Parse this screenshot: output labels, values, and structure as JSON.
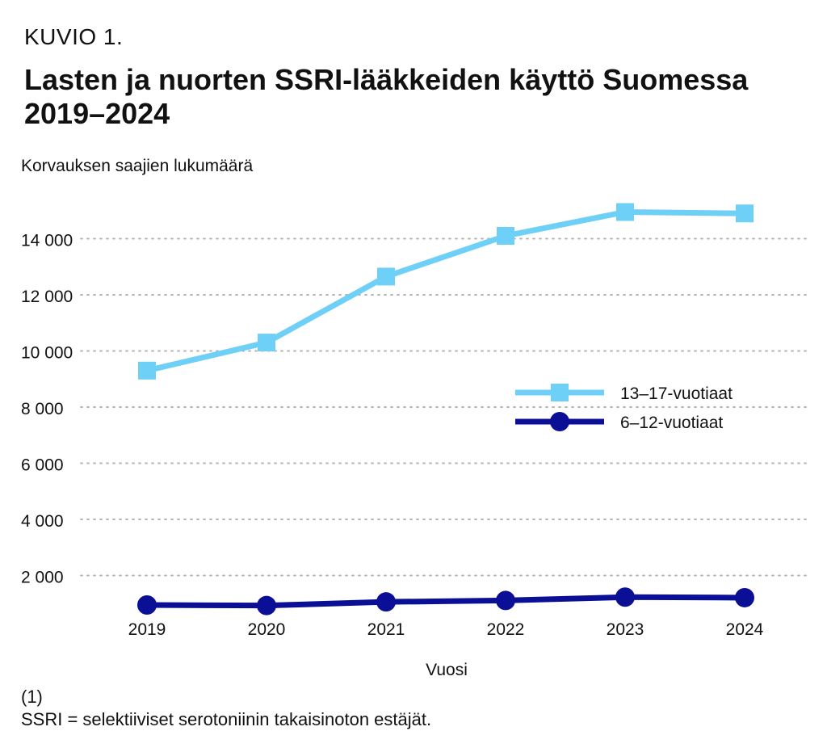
{
  "figure_label": "KUVIO 1.",
  "footnotes": [
    "(1)",
    "SSRI = selektiiviset serotoniinin takaisinoton estäjät."
  ],
  "colors": {
    "series_13_17": "#6fd0f7",
    "series_6_12": "#0b0f96",
    "grid": "#b5b5b5"
  },
  "chart_data": {
    "type": "line",
    "title": "Lasten ja nuorten SSRI-lääkkeiden käyttö Suomessa 2019–2024",
    "xlabel": "Vuosi",
    "ylabel": "Korvauksen saajien lukumäärä",
    "categories": [
      "2019",
      "2020",
      "2021",
      "2022",
      "2023",
      "2024"
    ],
    "ylim": [
      0,
      15000
    ],
    "yticks": [
      2000,
      4000,
      6000,
      8000,
      10000,
      12000,
      14000
    ],
    "ytick_labels": [
      "2 000",
      "4 000",
      "6 000",
      "8 000",
      "10 000",
      "12 000",
      "14 000"
    ],
    "grid": "horizontal dotted",
    "legend_position": "right-middle",
    "series": [
      {
        "name": "13–17-vuotiaat",
        "marker": "square",
        "values": [
          9300,
          10300,
          12650,
          14100,
          14950,
          14900
        ]
      },
      {
        "name": "6–12-vuotiaat",
        "marker": "circle",
        "values": [
          950,
          930,
          1060,
          1110,
          1230,
          1210
        ]
      }
    ]
  }
}
